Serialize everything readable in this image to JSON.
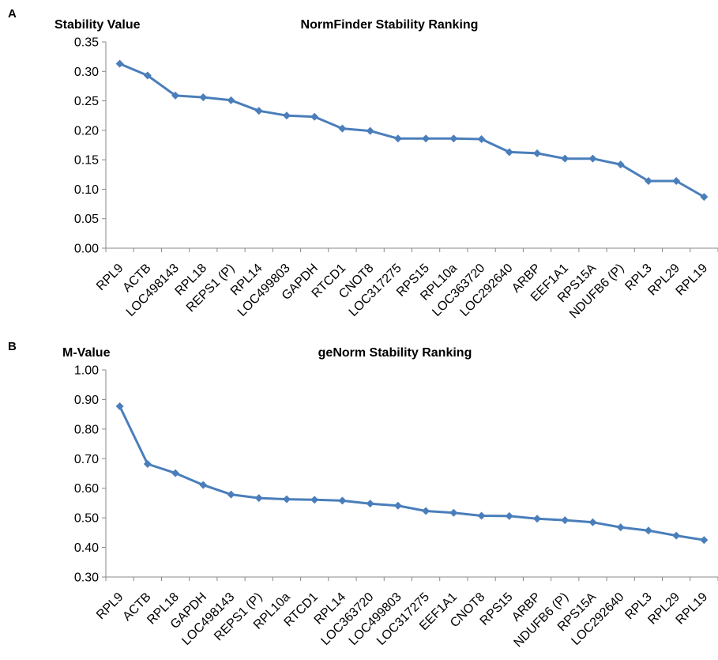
{
  "chart_data": [
    {
      "panel": "A",
      "type": "line",
      "title": "NormFinder Stability Ranking",
      "ylabel": "Stability Value",
      "xlabel": "",
      "ylim": [
        0,
        0.35
      ],
      "yticks": [
        "0.00",
        "0.05",
        "0.10",
        "0.15",
        "0.20",
        "0.25",
        "0.30",
        "0.35"
      ],
      "grid": false,
      "color": "#4a7ebb",
      "categories": [
        "RPL9",
        "ACTB",
        "LOC498143",
        "RPL18",
        "REPS1 (P)",
        "RPL14",
        "LOC499803",
        "GAPDH",
        "RTCD1",
        "CNOT8",
        "LOC317275",
        "RPS15",
        "RPL10a",
        "LOC363720",
        "LOC292640",
        "ARBP",
        "EEF1A1",
        "RPS15A",
        "NDUFB6 (P)",
        "RPL3",
        "RPL29",
        "RPL19"
      ],
      "values": [
        0.313,
        0.293,
        0.259,
        0.256,
        0.251,
        0.233,
        0.225,
        0.223,
        0.203,
        0.199,
        0.186,
        0.186,
        0.186,
        0.185,
        0.163,
        0.161,
        0.152,
        0.152,
        0.142,
        0.114,
        0.114,
        0.087
      ]
    },
    {
      "panel": "B",
      "type": "line",
      "title": "geNorm Stability Ranking",
      "ylabel": "M-Value",
      "xlabel": "",
      "ylim": [
        0.3,
        1.0
      ],
      "yticks": [
        "0.30",
        "0.40",
        "0.50",
        "0.60",
        "0.70",
        "0.80",
        "0.90",
        "1.00"
      ],
      "grid": false,
      "color": "#4a7ebb",
      "categories": [
        "RPL9",
        "ACTB",
        "RPL18",
        "GAPDH",
        "LOC498143",
        "REPS1 (P)",
        "RPL10a",
        "RTCD1",
        "RPL14",
        "LOC363720",
        "LOC499803",
        "LOC317275",
        "EEF1A1",
        "CNOT8",
        "RPS15",
        "ARBP",
        "NDUFB6 (P)",
        "RPS15A",
        "LOC292640",
        "RPL3",
        "RPL29",
        "RPL19"
      ],
      "values": [
        0.877,
        0.682,
        0.651,
        0.611,
        0.579,
        0.567,
        0.563,
        0.561,
        0.558,
        0.548,
        0.541,
        0.523,
        0.517,
        0.507,
        0.506,
        0.497,
        0.492,
        0.485,
        0.468,
        0.457,
        0.44,
        0.425
      ]
    }
  ]
}
